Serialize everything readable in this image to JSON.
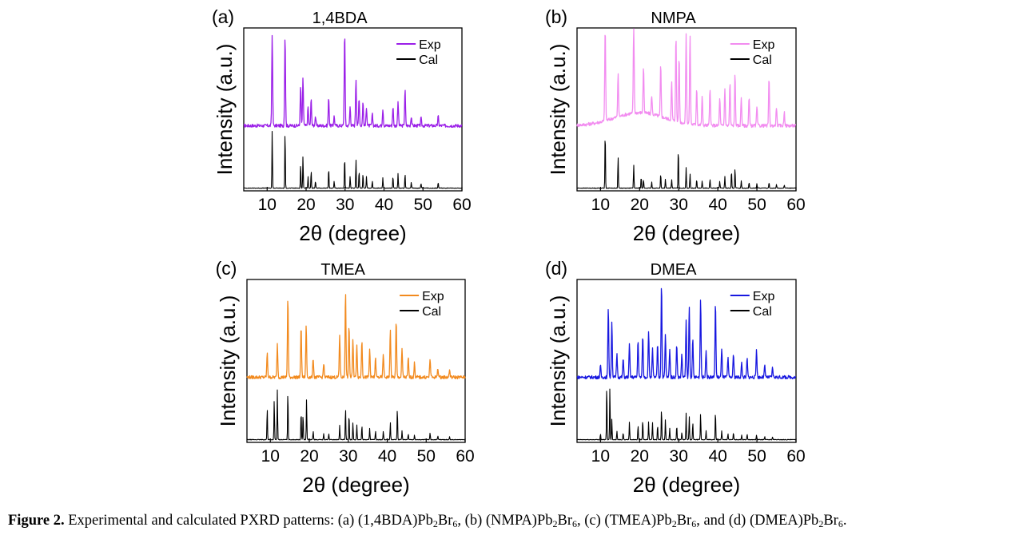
{
  "chart_data": [
    {
      "type": "line",
      "panel_label": "(a)",
      "title": "1,4BDA",
      "xlabel": "2θ (degree)",
      "ylabel": "Intensity (a.u.)",
      "xlim": [
        4,
        60
      ],
      "x_ticks": [
        "10",
        "20",
        "30",
        "40",
        "50",
        "60"
      ],
      "legend_position": "top-right",
      "series": [
        {
          "name": "Exp",
          "color": "#9b1fe8",
          "peaks": [
            [
              11.3,
              0.97
            ],
            [
              14.6,
              0.96
            ],
            [
              18.6,
              0.42
            ],
            [
              19.2,
              0.5
            ],
            [
              20.5,
              0.2
            ],
            [
              21.3,
              0.28
            ],
            [
              22.4,
              0.1
            ],
            [
              25.8,
              0.3
            ],
            [
              27.2,
              0.1
            ],
            [
              29.9,
              1.0
            ],
            [
              31.3,
              0.2
            ],
            [
              32.8,
              0.5
            ],
            [
              33.6,
              0.3
            ],
            [
              34.6,
              0.25
            ],
            [
              35.5,
              0.2
            ],
            [
              37.0,
              0.12
            ],
            [
              39.7,
              0.18
            ],
            [
              42.3,
              0.2
            ],
            [
              43.6,
              0.25
            ],
            [
              45.4,
              0.38
            ],
            [
              47.0,
              0.1
            ],
            [
              49.5,
              0.08
            ],
            [
              53.9,
              0.1
            ]
          ]
        },
        {
          "name": "Cal",
          "color": "#000000",
          "peaks": [
            [
              11.3,
              1.0
            ],
            [
              14.6,
              1.0
            ],
            [
              18.6,
              0.42
            ],
            [
              19.2,
              0.55
            ],
            [
              20.5,
              0.2
            ],
            [
              21.3,
              0.3
            ],
            [
              22.4,
              0.12
            ],
            [
              25.8,
              0.35
            ],
            [
              27.2,
              0.12
            ],
            [
              29.9,
              0.55
            ],
            [
              31.3,
              0.2
            ],
            [
              32.8,
              0.5
            ],
            [
              33.6,
              0.3
            ],
            [
              34.6,
              0.25
            ],
            [
              35.5,
              0.2
            ],
            [
              37.0,
              0.12
            ],
            [
              39.7,
              0.18
            ],
            [
              42.3,
              0.2
            ],
            [
              43.6,
              0.25
            ],
            [
              45.4,
              0.25
            ],
            [
              47.0,
              0.1
            ],
            [
              49.5,
              0.08
            ],
            [
              53.9,
              0.1
            ]
          ]
        }
      ]
    },
    {
      "type": "line",
      "panel_label": "(b)",
      "title": "NMPA",
      "xlabel": "2θ (degree)",
      "ylabel": "Intensity (a.u.)",
      "xlim": [
        4,
        60
      ],
      "x_ticks": [
        "10",
        "20",
        "30",
        "40",
        "50",
        "60"
      ],
      "legend_position": "top-right",
      "series": [
        {
          "name": "Exp",
          "color": "#f28cf0",
          "peaks": [
            [
              11.2,
              1.0
            ],
            [
              14.5,
              0.45
            ],
            [
              18.5,
              0.95
            ],
            [
              21.0,
              0.5
            ],
            [
              23.1,
              0.2
            ],
            [
              25.4,
              0.55
            ],
            [
              28.2,
              0.4
            ],
            [
              29.3,
              0.9
            ],
            [
              30.1,
              0.7
            ],
            [
              31.9,
              0.95
            ],
            [
              32.9,
              0.95
            ],
            [
              34.6,
              0.4
            ],
            [
              36.0,
              0.3
            ],
            [
              38.0,
              0.4
            ],
            [
              40.5,
              0.3
            ],
            [
              41.8,
              0.4
            ],
            [
              43.1,
              0.45
            ],
            [
              44.4,
              0.55
            ],
            [
              46.0,
              0.3
            ],
            [
              48.0,
              0.3
            ],
            [
              50.0,
              0.2
            ],
            [
              53.1,
              0.5
            ],
            [
              55.0,
              0.2
            ],
            [
              57.0,
              0.15
            ]
          ]
        },
        {
          "name": "Cal",
          "color": "#000000",
          "peaks": [
            [
              11.2,
              1.0
            ],
            [
              14.5,
              0.55
            ],
            [
              18.5,
              0.4
            ],
            [
              20.4,
              0.2
            ],
            [
              21.0,
              0.15
            ],
            [
              23.1,
              0.1
            ],
            [
              25.4,
              0.25
            ],
            [
              26.6,
              0.15
            ],
            [
              28.2,
              0.15
            ],
            [
              29.9,
              0.7
            ],
            [
              31.9,
              0.35
            ],
            [
              32.9,
              0.25
            ],
            [
              34.6,
              0.15
            ],
            [
              36.0,
              0.12
            ],
            [
              38.0,
              0.15
            ],
            [
              40.5,
              0.12
            ],
            [
              41.8,
              0.2
            ],
            [
              43.5,
              0.3
            ],
            [
              44.4,
              0.35
            ],
            [
              46.0,
              0.12
            ],
            [
              48.0,
              0.1
            ],
            [
              50.0,
              0.08
            ],
            [
              53.1,
              0.1
            ],
            [
              55.0,
              0.06
            ],
            [
              57.0,
              0.05
            ]
          ]
        }
      ]
    },
    {
      "type": "line",
      "panel_label": "(c)",
      "title": "TMEA",
      "xlabel": "2θ (degree)",
      "ylabel": "Intensity (a.u.)",
      "xlim": [
        4,
        60
      ],
      "x_ticks": [
        "10",
        "20",
        "30",
        "40",
        "50",
        "60"
      ],
      "legend_position": "top-right",
      "series": [
        {
          "name": "Exp",
          "color": "#f28a1e",
          "peaks": [
            [
              9.2,
              0.25
            ],
            [
              11.8,
              0.35
            ],
            [
              14.5,
              0.85
            ],
            [
              17.9,
              0.55
            ],
            [
              19.2,
              0.55
            ],
            [
              21.0,
              0.2
            ],
            [
              23.7,
              0.15
            ],
            [
              27.8,
              0.45
            ],
            [
              29.3,
              0.9
            ],
            [
              30.2,
              0.55
            ],
            [
              31.2,
              0.4
            ],
            [
              32.2,
              0.35
            ],
            [
              33.5,
              0.4
            ],
            [
              35.5,
              0.3
            ],
            [
              37.0,
              0.2
            ],
            [
              39.0,
              0.25
            ],
            [
              40.8,
              0.5
            ],
            [
              42.3,
              0.6
            ],
            [
              43.8,
              0.3
            ],
            [
              45.4,
              0.2
            ],
            [
              47.0,
              0.15
            ],
            [
              51.0,
              0.2
            ],
            [
              53.0,
              0.1
            ],
            [
              56.0,
              0.08
            ]
          ]
        },
        {
          "name": "Cal",
          "color": "#000000",
          "peaks": [
            [
              9.2,
              0.55
            ],
            [
              11.0,
              0.7
            ],
            [
              11.8,
              0.85
            ],
            [
              14.5,
              0.85
            ],
            [
              17.9,
              0.5
            ],
            [
              18.4,
              0.45
            ],
            [
              19.3,
              0.7
            ],
            [
              21.0,
              0.15
            ],
            [
              23.7,
              0.1
            ],
            [
              25.0,
              0.1
            ],
            [
              27.8,
              0.25
            ],
            [
              29.3,
              0.55
            ],
            [
              30.2,
              0.45
            ],
            [
              31.2,
              0.3
            ],
            [
              32.2,
              0.25
            ],
            [
              33.5,
              0.25
            ],
            [
              35.5,
              0.2
            ],
            [
              37.0,
              0.15
            ],
            [
              39.0,
              0.15
            ],
            [
              40.8,
              0.3
            ],
            [
              42.6,
              0.55
            ],
            [
              43.8,
              0.15
            ],
            [
              45.4,
              0.1
            ],
            [
              47.0,
              0.08
            ],
            [
              51.0,
              0.12
            ],
            [
              53.0,
              0.06
            ],
            [
              56.0,
              0.05
            ]
          ]
        }
      ]
    },
    {
      "type": "line",
      "panel_label": "(d)",
      "title": "DMEA",
      "xlabel": "2θ (degree)",
      "ylabel": "Intensity (a.u.)",
      "xlim": [
        4,
        60
      ],
      "x_ticks": [
        "10",
        "20",
        "30",
        "40",
        "50",
        "60"
      ],
      "legend_position": "top-right",
      "series": [
        {
          "name": "Exp",
          "color": "#1818e0",
          "peaks": [
            [
              10.0,
              0.12
            ],
            [
              12.0,
              0.75
            ],
            [
              12.9,
              0.6
            ],
            [
              14.2,
              0.25
            ],
            [
              15.8,
              0.2
            ],
            [
              17.4,
              0.35
            ],
            [
              19.6,
              0.4
            ],
            [
              20.8,
              0.45
            ],
            [
              22.3,
              0.5
            ],
            [
              23.3,
              0.3
            ],
            [
              24.6,
              0.35
            ],
            [
              25.6,
              1.0
            ],
            [
              26.6,
              0.45
            ],
            [
              27.7,
              0.3
            ],
            [
              29.5,
              0.35
            ],
            [
              30.8,
              0.25
            ],
            [
              31.9,
              0.6
            ],
            [
              32.7,
              0.75
            ],
            [
              33.6,
              0.4
            ],
            [
              35.6,
              0.85
            ],
            [
              37.0,
              0.3
            ],
            [
              39.4,
              0.8
            ],
            [
              41.0,
              0.3
            ],
            [
              42.6,
              0.2
            ],
            [
              44.0,
              0.25
            ],
            [
              46.1,
              0.15
            ],
            [
              47.5,
              0.2
            ],
            [
              49.9,
              0.3
            ],
            [
              52.0,
              0.12
            ],
            [
              54.0,
              0.1
            ]
          ]
        },
        {
          "name": "Cal",
          "color": "#000000",
          "peaks": [
            [
              10.0,
              0.1
            ],
            [
              11.6,
              0.95
            ],
            [
              12.4,
              0.9
            ],
            [
              12.9,
              0.35
            ],
            [
              14.2,
              0.15
            ],
            [
              15.8,
              0.12
            ],
            [
              17.4,
              0.3
            ],
            [
              19.6,
              0.25
            ],
            [
              20.8,
              0.35
            ],
            [
              22.3,
              0.3
            ],
            [
              23.3,
              0.3
            ],
            [
              24.6,
              0.25
            ],
            [
              25.6,
              0.55
            ],
            [
              26.6,
              0.35
            ],
            [
              27.7,
              0.2
            ],
            [
              29.5,
              0.25
            ],
            [
              30.8,
              0.12
            ],
            [
              31.9,
              0.45
            ],
            [
              32.7,
              0.4
            ],
            [
              33.6,
              0.3
            ],
            [
              35.6,
              0.45
            ],
            [
              37.0,
              0.15
            ],
            [
              39.4,
              0.5
            ],
            [
              41.0,
              0.15
            ],
            [
              42.6,
              0.1
            ],
            [
              44.0,
              0.12
            ],
            [
              46.1,
              0.08
            ],
            [
              47.5,
              0.1
            ],
            [
              49.9,
              0.08
            ],
            [
              52.0,
              0.05
            ],
            [
              54.0,
              0.05
            ]
          ]
        }
      ]
    }
  ],
  "caption": {
    "label": "Figure 2.",
    "text_intro": "Experimental and calculated PXRD patterns: (a) (1,4BDA)Pb",
    "text_b": ", (b) (NMPA)Pb",
    "text_c": ", (c) (TMEA)Pb",
    "text_d": ", and (d) (DMEA)Pb",
    "text_end": ".",
    "sub_pb": "2",
    "br": "Br",
    "sub_br": "6"
  }
}
